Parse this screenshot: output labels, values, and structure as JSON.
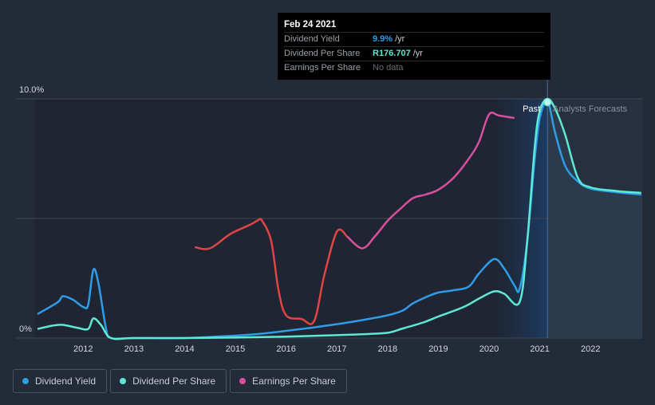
{
  "tooltip": {
    "date": "Feb 24 2021",
    "rows": [
      {
        "label": "Dividend Yield",
        "value": "9.9%",
        "unit": "/yr",
        "color": "#2f9ce8"
      },
      {
        "label": "Dividend Per Share",
        "value": "R176.707",
        "unit": "/yr",
        "color": "#5ee8d6"
      },
      {
        "label": "Earnings Per Share",
        "value": "No data",
        "unit": "",
        "color": "#666b73"
      }
    ]
  },
  "labels": {
    "past": "Past",
    "forecast": "Analysts Forecasts"
  },
  "legend": [
    {
      "label": "Dividend Yield",
      "color": "#2f9ce8"
    },
    {
      "label": "Dividend Per Share",
      "color": "#5ee8d6"
    },
    {
      "label": "Earnings Per Share",
      "color": "#d94f9e"
    }
  ],
  "chart_data": {
    "type": "line",
    "y_tick_labels": [
      "0%",
      "10.0%"
    ],
    "x_tick_labels": [
      "2012",
      "2013",
      "2014",
      "2015",
      "2016",
      "2017",
      "2018",
      "2019",
      "2020",
      "2021",
      "2022"
    ],
    "x_range": [
      2011.1,
      2023.0
    ],
    "y_range": [
      0,
      10.0
    ],
    "grid": true,
    "legend_position": "bottom-left",
    "past_forecast_split_x": 2021.15,
    "series": [
      {
        "name": "Dividend Yield",
        "color": "#2f9ce8",
        "points": [
          [
            2011.1,
            1.0
          ],
          [
            2011.5,
            1.5
          ],
          [
            2011.6,
            1.75
          ],
          [
            2011.8,
            1.6
          ],
          [
            2012.0,
            1.3
          ],
          [
            2012.1,
            1.4
          ],
          [
            2012.2,
            2.85
          ],
          [
            2012.3,
            2.3
          ],
          [
            2012.45,
            0.4
          ],
          [
            2012.55,
            0.0
          ],
          [
            2013.0,
            0.0
          ],
          [
            2014.0,
            0.0
          ],
          [
            2015.0,
            0.1
          ],
          [
            2015.5,
            0.18
          ],
          [
            2016.0,
            0.3
          ],
          [
            2016.5,
            0.43
          ],
          [
            2017.0,
            0.58
          ],
          [
            2017.5,
            0.75
          ],
          [
            2018.0,
            0.95
          ],
          [
            2018.3,
            1.15
          ],
          [
            2018.5,
            1.45
          ],
          [
            2018.8,
            1.75
          ],
          [
            2019.0,
            1.9
          ],
          [
            2019.3,
            2.0
          ],
          [
            2019.6,
            2.15
          ],
          [
            2019.8,
            2.7
          ],
          [
            2020.1,
            3.3
          ],
          [
            2020.3,
            2.9
          ],
          [
            2020.5,
            2.2
          ],
          [
            2020.6,
            2.05
          ],
          [
            2020.75,
            4.0
          ],
          [
            2020.9,
            7.5
          ],
          [
            2021.0,
            9.2
          ],
          [
            2021.15,
            9.9
          ],
          [
            2021.3,
            8.6
          ],
          [
            2021.5,
            7.2
          ],
          [
            2021.75,
            6.55
          ],
          [
            2022.0,
            6.25
          ],
          [
            2022.5,
            6.1
          ],
          [
            2023.0,
            6.0
          ]
        ]
      },
      {
        "name": "Dividend Per Share",
        "color": "#5ee8d6",
        "points": [
          [
            2011.1,
            0.38
          ],
          [
            2011.4,
            0.52
          ],
          [
            2011.6,
            0.55
          ],
          [
            2011.9,
            0.42
          ],
          [
            2012.1,
            0.38
          ],
          [
            2012.2,
            0.82
          ],
          [
            2012.35,
            0.55
          ],
          [
            2012.55,
            0.0
          ],
          [
            2013.0,
            0.0
          ],
          [
            2014.0,
            0.0
          ],
          [
            2015.0,
            0.02
          ],
          [
            2016.0,
            0.06
          ],
          [
            2017.0,
            0.12
          ],
          [
            2017.5,
            0.16
          ],
          [
            2018.0,
            0.22
          ],
          [
            2018.3,
            0.4
          ],
          [
            2018.7,
            0.65
          ],
          [
            2019.0,
            0.9
          ],
          [
            2019.5,
            1.3
          ],
          [
            2019.8,
            1.65
          ],
          [
            2020.1,
            1.95
          ],
          [
            2020.3,
            1.85
          ],
          [
            2020.6,
            1.5
          ],
          [
            2020.75,
            4.0
          ],
          [
            2020.9,
            8.0
          ],
          [
            2021.0,
            9.5
          ],
          [
            2021.15,
            10.0
          ],
          [
            2021.3,
            9.6
          ],
          [
            2021.5,
            8.5
          ],
          [
            2021.75,
            6.7
          ],
          [
            2022.0,
            6.3
          ],
          [
            2022.5,
            6.15
          ],
          [
            2023.0,
            6.07
          ]
        ]
      },
      {
        "name": "Earnings Per Share",
        "color": "#d94f9e",
        "negative_color": "#e04545",
        "points": [
          [
            2014.2,
            3.8
          ],
          [
            2014.5,
            3.75
          ],
          [
            2014.9,
            4.35
          ],
          [
            2015.3,
            4.75
          ],
          [
            2015.5,
            5.0
          ],
          [
            2015.7,
            4.1
          ],
          [
            2015.85,
            2.0
          ],
          [
            2016.0,
            0.95
          ],
          [
            2016.3,
            0.8
          ],
          [
            2016.55,
            0.7
          ],
          [
            2016.75,
            2.6
          ],
          [
            2017.0,
            4.45
          ],
          [
            2017.2,
            4.25
          ],
          [
            2017.5,
            3.75
          ],
          [
            2017.75,
            4.25
          ],
          [
            2018.0,
            4.9
          ],
          [
            2018.25,
            5.4
          ],
          [
            2018.5,
            5.85
          ],
          [
            2018.75,
            6.0
          ],
          [
            2019.0,
            6.2
          ],
          [
            2019.3,
            6.7
          ],
          [
            2019.6,
            7.5
          ],
          [
            2019.8,
            8.2
          ],
          [
            2020.0,
            9.35
          ],
          [
            2020.2,
            9.3
          ],
          [
            2020.5,
            9.2
          ]
        ],
        "red_segment_x": [
          2015.5,
          2017.2
        ]
      }
    ]
  }
}
